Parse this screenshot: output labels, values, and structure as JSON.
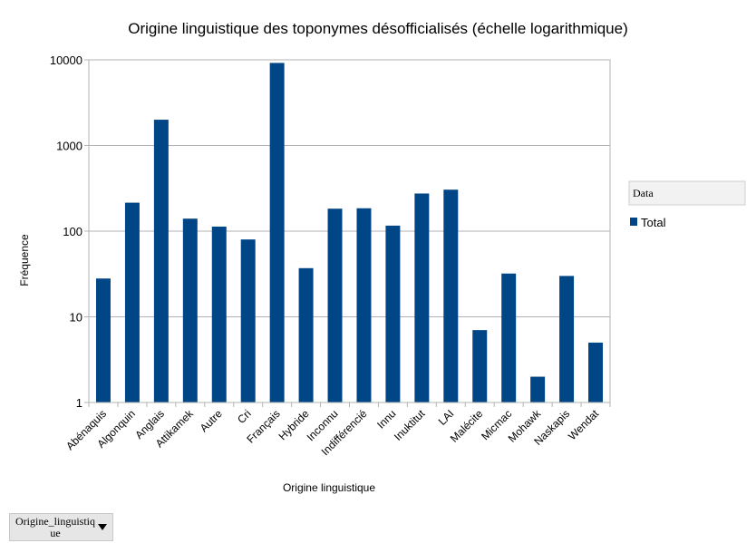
{
  "chart_data": {
    "type": "bar",
    "title": "Origine linguistique des toponymes désofficialisés (échelle logarithmique)",
    "xlabel": "Origine linguistique",
    "ylabel": "Fréquence",
    "yscale": "log",
    "ylim": [
      1,
      10000
    ],
    "yticks": [
      "1",
      "10",
      "100",
      "1000",
      "10000"
    ],
    "grid": true,
    "legend_position": "right",
    "legend_header": "Data",
    "bar_color": "#004586",
    "categories": [
      "Abénaquis",
      "Algonquin",
      "Anglais",
      "Attikamek",
      "Autre",
      "Cri",
      "Français",
      "Hybride",
      "Inconnu",
      "Indifférencié",
      "Innu",
      "Inuktitut",
      "LAI",
      "Malécite",
      "Micmac",
      "Mohawk",
      "Naskapis",
      "Wendat"
    ],
    "series": [
      {
        "name": "Total",
        "values": [
          28,
          215,
          2000,
          140,
          113,
          80,
          9200,
          37,
          183,
          185,
          116,
          275,
          305,
          7,
          32,
          2,
          30,
          5
        ]
      }
    ]
  },
  "field_button": {
    "label": "Origine_linguistique"
  }
}
